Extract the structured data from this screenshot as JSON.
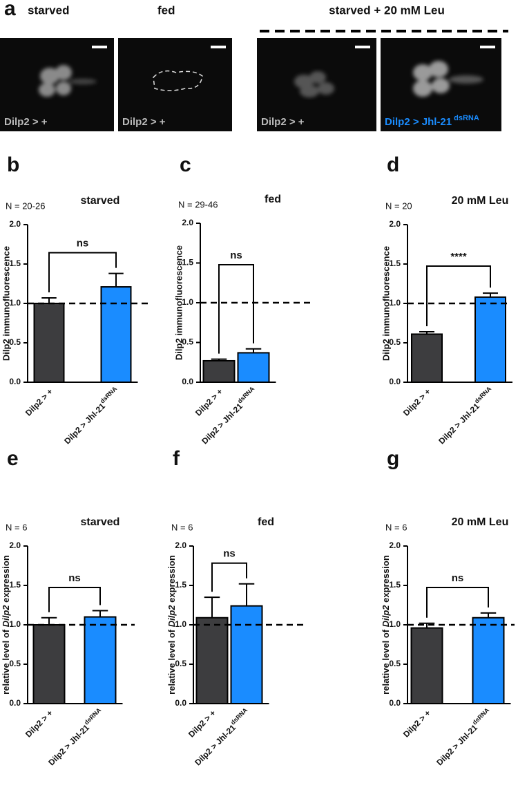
{
  "figure": {
    "letter": "a",
    "headers": [
      "starved",
      "fed",
      "starved + 20 mM Leu"
    ],
    "image_labels": [
      [
        "Dilp2 > +"
      ],
      [
        "Dilp2 > +"
      ],
      [
        "Dilp2 > +"
      ],
      [
        "Dilp2 > Jhl-21",
        "dsRNA"
      ]
    ]
  },
  "chart_data": [
    {
      "type": "bar",
      "letter": "b",
      "title": "starved",
      "n_label": "N = 20-26",
      "ylabel": "Dilp2 immunofluorescence",
      "categories": [
        [
          "Dilp2 > +"
        ],
        [
          "Dilp2 > Jhl-21",
          "dsRNA"
        ]
      ],
      "values": [
        1.0,
        1.21
      ],
      "errors": [
        0.07,
        0.17
      ],
      "colors": [
        "#3d3d3f",
        "#1a8cff"
      ],
      "ylim": [
        0,
        2
      ],
      "yticks": [
        {
          "value": 0,
          "label": "0.0"
        },
        0.5,
        {
          "value": 1,
          "label": "1.0"
        },
        1.5,
        {
          "value": 2,
          "label": "2.0"
        }
      ],
      "reference_line": 1,
      "annotation": "ns"
    },
    {
      "type": "bar",
      "letter": "c",
      "title": "fed",
      "n_label": "N = 29-46",
      "ylabel": "Dilp2 immunofluorescence",
      "categories": [
        [
          "Dilp2 > +"
        ],
        [
          "Dilp2 > Jhl-21",
          "dsRNA"
        ]
      ],
      "values": [
        0.27,
        0.37
      ],
      "errors": [
        0.02,
        0.05
      ],
      "colors": [
        "#3d3d3f",
        "#1a8cff"
      ],
      "ylim": [
        0,
        2
      ],
      "yticks": [
        {
          "value": 0,
          "label": "0.0"
        },
        0.5,
        {
          "value": 1,
          "label": "1.0"
        },
        1.5,
        {
          "value": 2,
          "label": "2.0"
        }
      ],
      "reference_line": 1,
      "annotation": "ns"
    },
    {
      "type": "bar",
      "letter": "d",
      "title": "20 mM Leu",
      "n_label": "N = 20",
      "ylabel": "Dilp2 immunofluorescence",
      "categories": [
        [
          "Dilp2 > +"
        ],
        [
          "Dilp2 > Jhl-21",
          "dsRNA"
        ]
      ],
      "values": [
        0.61,
        1.08
      ],
      "errors": [
        0.03,
        0.05
      ],
      "colors": [
        "#3d3d3f",
        "#1a8cff"
      ],
      "ylim": [
        0,
        2
      ],
      "yticks": [
        {
          "value": 0,
          "label": "0.0"
        },
        0.5,
        {
          "value": 1,
          "label": "1.0"
        },
        1.5,
        {
          "value": 2,
          "label": "2.0"
        }
      ],
      "reference_line": 1,
      "annotation": "****"
    },
    {
      "type": "bar",
      "letter": "e",
      "title": "starved",
      "n_label": "N = 6",
      "ylabel": [
        "relative level of ",
        "Dilp2",
        " expression"
      ],
      "categories": [
        [
          "Dilp2 > +"
        ],
        [
          "Dilp2 > Jhl-21",
          "dsRNA"
        ]
      ],
      "values": [
        1.0,
        1.1
      ],
      "errors": [
        0.09,
        0.08
      ],
      "colors": [
        "#3d3d3f",
        "#1a8cff"
      ],
      "ylim": [
        0,
        2
      ],
      "yticks": [
        {
          "value": 0,
          "label": "0.0"
        },
        0.5,
        {
          "value": 1,
          "label": "1.0"
        },
        1.5,
        {
          "value": 2,
          "label": "2.0"
        }
      ],
      "reference_line": 1,
      "annotation": "ns"
    },
    {
      "type": "bar",
      "letter": "f",
      "title": "fed",
      "n_label": "N = 6",
      "ylabel": [
        "relative level of ",
        "Dilp2",
        " expression"
      ],
      "categories": [
        [
          "Dilp2 > +"
        ],
        [
          "Dilp2 > Jhl-21",
          "dsRNA"
        ]
      ],
      "values": [
        1.09,
        1.24
      ],
      "errors": [
        0.26,
        0.28
      ],
      "colors": [
        "#3d3d3f",
        "#1a8cff"
      ],
      "ylim": [
        0,
        2
      ],
      "yticks": [
        {
          "value": 0,
          "label": "0.0"
        },
        0.5,
        {
          "value": 1,
          "label": "1.0"
        },
        1.5,
        {
          "value": 2,
          "label": "2.0"
        }
      ],
      "reference_line": 1,
      "annotation": "ns"
    },
    {
      "type": "bar",
      "letter": "g",
      "title": "20 mM Leu",
      "n_label": "N = 6",
      "ylabel": [
        "relative level of ",
        "Dilp2",
        " expression"
      ],
      "categories": [
        [
          "Dilp2 > +"
        ],
        [
          "Dilp2 > Jhl-21",
          "dsRNA"
        ]
      ],
      "values": [
        0.96,
        1.09
      ],
      "errors": [
        0.06,
        0.06
      ],
      "colors": [
        "#3d3d3f",
        "#1a8cff"
      ],
      "ylim": [
        0,
        2
      ],
      "yticks": [
        {
          "value": 0,
          "label": "0.0"
        },
        0.5,
        {
          "value": 1,
          "label": "1.0"
        },
        1.5,
        {
          "value": 2,
          "label": "2.0"
        }
      ],
      "reference_line": 1,
      "annotation": "ns"
    }
  ]
}
